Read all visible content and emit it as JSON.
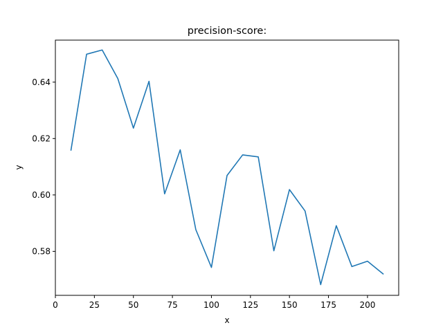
{
  "chart_data": {
    "type": "line",
    "title": "precision-score:",
    "xlabel": "x",
    "ylabel": "y",
    "xlim": [
      0,
      220
    ],
    "ylim": [
      0.5644,
      0.6549
    ],
    "xticks": [
      0,
      25,
      50,
      75,
      100,
      125,
      150,
      175,
      200
    ],
    "yticks": [
      0.58,
      0.6,
      0.62,
      0.64
    ],
    "ytick_labels": [
      "0.58",
      "0.60",
      "0.62",
      "0.64"
    ],
    "grid": false,
    "series": [
      {
        "color": "#1f77b4",
        "x": [
          10,
          20,
          30,
          40,
          50,
          60,
          70,
          80,
          90,
          100,
          110,
          120,
          130,
          140,
          150,
          160,
          170,
          180,
          190,
          200,
          210
        ],
        "y": [
          0.6159,
          0.6499,
          0.6514,
          0.6413,
          0.6237,
          0.6403,
          0.6004,
          0.616,
          0.5877,
          0.5743,
          0.6069,
          0.6142,
          0.6135,
          0.5802,
          0.6019,
          0.5943,
          0.5682,
          0.5891,
          0.5746,
          0.5765,
          0.572
        ]
      }
    ]
  }
}
